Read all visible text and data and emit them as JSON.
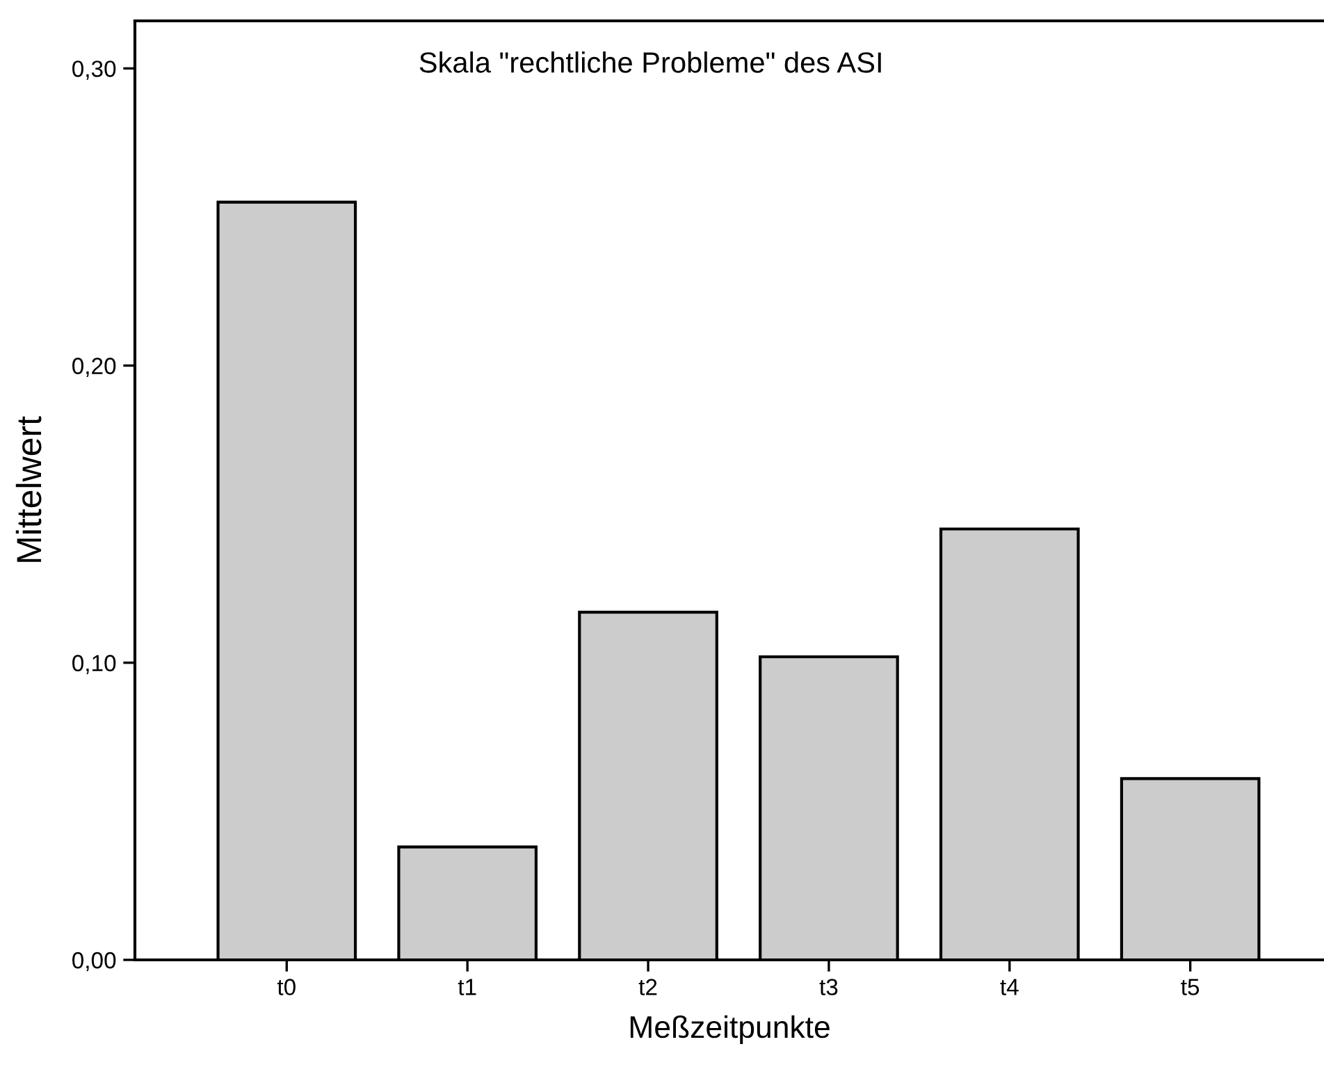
{
  "chart_data": {
    "type": "bar",
    "title": "Skala \"rechtliche Probleme\" des ASI",
    "xlabel": "Meßzeitpunkte",
    "ylabel": "Mittelwert",
    "categories": [
      "t0",
      "t1",
      "t2",
      "t3",
      "t4",
      "t5"
    ],
    "values": [
      0.255,
      0.038,
      0.117,
      0.102,
      0.145,
      0.061
    ],
    "color": "#cccccc",
    "ylim": [
      0,
      0.316
    ],
    "yticks": [
      {
        "value": 0,
        "label": "0,00"
      },
      {
        "value": 0.1,
        "label": "0,10"
      },
      {
        "value": 0.2,
        "label": "0,20"
      },
      {
        "value": 0.3,
        "label": "0,30"
      }
    ],
    "grid": false
  }
}
